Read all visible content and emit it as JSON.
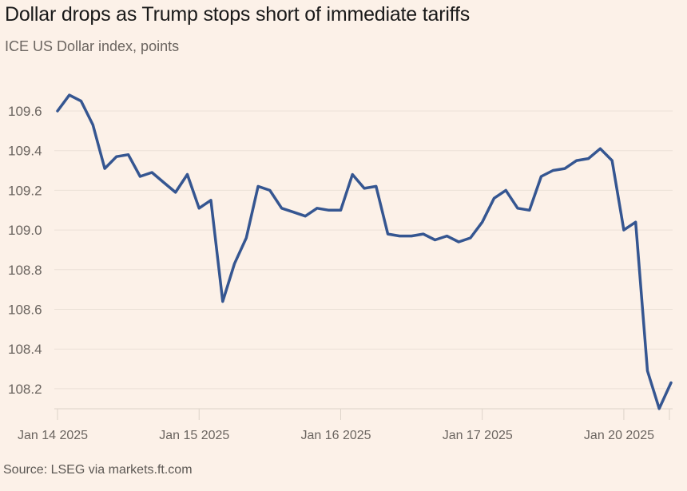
{
  "title": "Dollar drops as Trump stops short of immediate tariffs",
  "subtitle": "ICE US Dollar index, points",
  "source": "Source: LSEG via markets.ft.com",
  "chart_data": {
    "type": "line",
    "title": "Dollar drops as Trump stops short of immediate tariffs",
    "subtitle": "ICE US Dollar index, points",
    "xlabel": "",
    "ylabel": "points",
    "ylim": [
      108.1,
      109.7
    ],
    "yticks": [
      109.6,
      109.4,
      109.2,
      109.0,
      108.8,
      108.6,
      108.4,
      108.2
    ],
    "ytick_labels": [
      "109.6",
      "109.4",
      "109.2",
      "109.0",
      "108.8",
      "108.6",
      "108.4",
      "108.2"
    ],
    "xtick_labels": [
      "Jan 14 2025",
      "Jan 15 2025",
      "Jan 16 2025",
      "Jan 17 2025",
      "Jan 20 2025"
    ],
    "xtick_index": [
      0,
      12,
      24,
      36,
      48
    ],
    "grid": true,
    "legend": "none",
    "line_color": "#355691",
    "series": [
      {
        "name": "ICE US Dollar index",
        "values": [
          109.6,
          109.68,
          109.65,
          109.53,
          109.31,
          109.37,
          109.38,
          109.27,
          109.29,
          109.24,
          109.19,
          109.28,
          109.11,
          109.15,
          108.64,
          108.83,
          108.96,
          109.22,
          109.2,
          109.11,
          109.09,
          109.07,
          109.11,
          109.1,
          109.1,
          109.28,
          109.21,
          109.22,
          108.98,
          108.97,
          108.97,
          108.98,
          108.95,
          108.97,
          108.94,
          108.96,
          109.04,
          109.16,
          109.2,
          109.11,
          109.1,
          109.27,
          109.3,
          109.31,
          109.35,
          109.36,
          109.41,
          109.35,
          109.0,
          109.04,
          108.29,
          108.1,
          108.23
        ]
      }
    ]
  }
}
